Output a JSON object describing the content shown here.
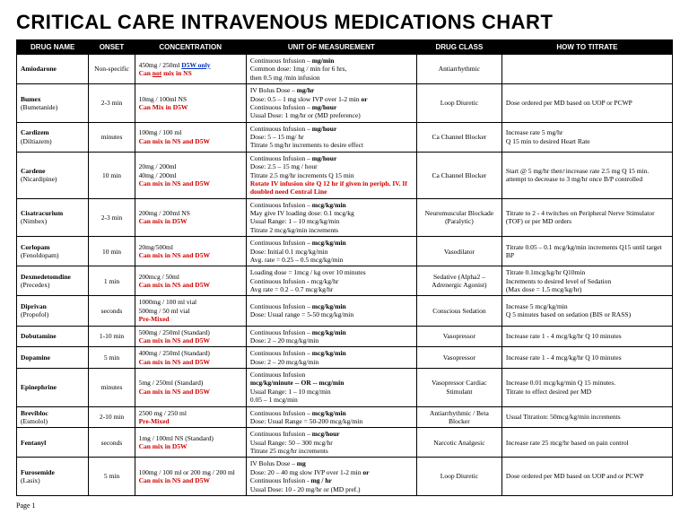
{
  "title": "CRITICAL CARE INTRAVENOUS MEDICATIONS CHART",
  "footer": "Page 1",
  "headers": {
    "name": "DRUG  NAME",
    "onset": "ONSET",
    "conc": "CONCENTRATION",
    "unit": "UNIT OF MEASUREMENT",
    "class": "DRUG CLASS",
    "tit": "HOW   TO TITRATE"
  },
  "rows": [
    {
      "name_html": "<span class='b'>Amiodarone</span>",
      "onset": "Non-specific",
      "conc_html": "450mg / 250ml  <span class='blue b'>D5W only</span><br><span class='red b'>Can <span class='u'>not</span> mix in NS</span>",
      "unit_html": "Continuous Infusion   –   <span class='b'>mg/min</span><br>Common dose: 1mg / min for 6 hrs,<br>then 0.5 mg /min infusion",
      "class": "Antiarrhythmic",
      "tit_html": ""
    },
    {
      "name_html": "<span class='b'>Bumex</span><br><span class='sub'>(Bumetanide)</span>",
      "onset": "2-3 min",
      "conc_html": "10mg / 100ml NS<br><span class='red b'>Can Mix in D5W</span>",
      "unit_html": "IV Bolus Dose   –    <span class='b'>mg/hr</span><br>Dose:  0.5 – 1 mg slow IVP over 1-2 min  <span class='b'>or</span><br>Continuous Infusion  –    <span class='b'>mg/hour</span><br>Usual Dose:  1 mg/hr  or (MD preference)",
      "class": "Loop Diuretic",
      "tit_html": "Dose ordered per MD based on UOP or PCWP"
    },
    {
      "name_html": "<span class='b'>Cardizem</span><br><span class='sub'>(Diltiazem)</span>",
      "onset": "minutes",
      "conc_html": "100mg / 100 ml<br><span class='red b'>Can mix in NS and D5W</span>",
      "unit_html": "Continuous Infusion   –    <span class='b'>mg/hour</span><br>Dose:  5 – 15 mg/ hr<br>Titrate 5 mg/hr increments to desire effect",
      "class": "Ca Channel Blocker",
      "tit_html": "Increase rate 5 mg/hr<br>Q 15 min to desired Heart Rate"
    },
    {
      "name_html": "<span class='b'>Cardene</span><br><span class='sub'>(Nicardipine)</span>",
      "onset": "10 min",
      "conc_html": "20mg / 200ml<br>40mg / 200ml<br><span class='red b'>Can mix in NS and D5W</span>",
      "unit_html": "Continuous Infusion   –    <span class='b'>mg/hour</span><br>Dose:  2.5 – 15 mg / hour<br>Titrate 2.5 mg/hr increments Q 15 min<br><span class='red b'>Rotate IV infusion site Q 12 hr if given in periph. IV.   If doubled need Central Line</span>",
      "class": "Ca Channel Blocker",
      "tit_html": "Start @ 5 mg/hr then↑increase  rate 2.5 mg Q 15 min. attempt to decrease to 3 mg/hr once B/P controlled"
    },
    {
      "name_html": "<span class='b'>Cisatracurium</span><br><span class='sub'>(Nimbex)</span>",
      "onset": "2-3 min",
      "conc_html": "200mg / 200ml NS<br><span class='red b'>Can mix in D5W</span>",
      "unit_html": "Continuous Infusion   –    <span class='b'>mcg/kg/min</span><br>May give IV loading dose: 0.1 mcg/kg<br>Usual Range:  1 – 10 mcg/kg/min<br>Titrate 2 mcg/kg/min increments",
      "class": "Neuromuscular Blockade (Paralytic)",
      "tit_html": "Titrate to 2  -  4  twitches on Peripheral  Nerve Stimulator (TOF) or per MD  orders"
    },
    {
      "name_html": "<span class='b'>Corlopam</span><br><span class='sub'>(Fenoldopam)</span>",
      "onset": "10 min",
      "conc_html": "20mg/500ml<br><span class='red b'>Can mix in NS and D5W</span>",
      "unit_html": "Continuous Infusion   –    <span class='b'>mcg/kg/min</span><br>Dose:  Initial 0.1 mcg/kg/min<br>Avg. rate = 0.25 – 0.5 mcg/kg/min",
      "class": "Vasodilator",
      "tit_html": "Titrate 0.05 – 0.1 mcg/kg/min increments Q15 until target BP"
    },
    {
      "name_html": "<span class='b'>Dexmedetomdine</span><br><span class='sub'>(Precedex)</span>",
      "onset": "1 min",
      "conc_html": "200mcg / 50ml<br><span class='red b'>Can mix in NS and D5W</span>",
      "unit_html": "Loading dose =  1mcg / kg over 10 minutes<br>Continuous Infusion   -    mcg/kg/hr<br>Avg rate = 0.2 – 0.7 mcg/kg/hr",
      "class": "Sedative (Alpha2 – Adrenergic Agonist)",
      "tit_html": "Titrate 0.1mcg/kg/hr Q10min<br>Increments to desired level of Sedation<br>(Max dose = 1.5 mcg/kg/hr)"
    },
    {
      "name_html": "<span class='b'>Diprivan</span><br><span class='sub'>(Propofol)</span>",
      "onset": "seconds",
      "conc_html": "1000mg / 100 ml vial<br>500mg / 50 ml vial<br><span class='red b'>Pre-Mixed</span>",
      "unit_html": "Continuous Infusion – <span class='b'>mcg/kg/min</span><br>Dose:  Usual range = 5-50 mcg/kg/min",
      "class": "Conscious Sedation",
      "tit_html": "Increase  5  mcg/kg/min<br>Q 5 minutes based on sedation  (BIS or RASS)"
    },
    {
      "name_html": "<span class='b'>Dobutamine</span>",
      "onset": "1-10 min",
      "conc_html": "500mg / 250ml (Standard)<br><span class='red b'>Can mix in NS and D5W</span>",
      "unit_html": "Continuous Infusion   –    <span class='b'>mcg/kg/min</span><br>Dose:  2 – 20 mcg/kg/min",
      "class": "Vasopressor",
      "tit_html": "Increase rate 1 -  4 mcg/kg/hr Q 10 minutes"
    },
    {
      "name_html": "<span class='b'>Dopamine</span>",
      "onset": "5 min",
      "conc_html": "400mg / 250ml (Standard)<br><span class='red b'>Can mix in NS and D5W</span>",
      "unit_html": "Continuous Infusion   –    <span class='b'>mcg/kg/min</span><br>Dose:  2 – 20 mcg/kg/min",
      "class": "Vasopressor",
      "tit_html": "Increase rate 1 -  4 mcg/kg/hr Q 10 minutes"
    },
    {
      "name_html": "<span class='b'>Epinephrine</span>",
      "onset": "minutes",
      "conc_html": "5mg / 250ml (Standard)<br><span class='red b'>Can mix in NS and D5W</span>",
      "unit_html": "Continuous Infusion<br><span class='b'>mcg/kg/minute --   OR  -- mcg/min</span><br>Usual Range: 1 – 10 mcg/min<br>                       0.05 – 1 mcg/min",
      "class": "Vasopressor Cardiac Stimulant",
      "tit_html": "Increase 0.01 mcg/kg/min Q 15 minutes.<br>Titrate to effect desired per MD"
    },
    {
      "name_html": "<span class='b'>Brevibloc</span><br><span class='sub'>(Esmolol)</span>",
      "onset": "2-10 min",
      "conc_html": "2500 mg / 250 ml<br><span class='red b'>Pre-Mixed</span>",
      "unit_html": "Continuous Infusion – <span class='b'>mcg/kg/min</span><br>Dose:  Usual Range = 50-200 mcg/kg/min",
      "class": "Antiarrhythmic / Beta Blocker",
      "tit_html": "Usual Titration: 50mcg/kg/min increments"
    },
    {
      "name_html": "<span class='b'>Fentanyl</span>",
      "onset": "seconds",
      "conc_html": "1mg / 100ml NS (Standard)<br><span class='red b'>Can mix in D5W</span>",
      "unit_html": "Continuous Infusion   –    <span class='b'>mcg/hour</span><br>Usual Range:  50 – 300 mcg/hr<br>Titrate 25 mcg/hr increments",
      "class": "Narcotic Analgesic",
      "tit_html": "Increase rate 25 mcg/hr based on pain control"
    },
    {
      "name_html": "<span class='b'>Furosemide</span><br><span class='sub'>(Lasix)</span>",
      "onset": "5 min",
      "conc_html": "100mg / 100 ml  or 200 mg / 200 ml<br><span class='red b'>Can mix in NS and D5W</span>",
      "unit_html": "IV Bolus Dose   –    <span class='b'>mg</span><br>Dose:  20 – 40 mg slow IVP over 1-2 min <span class='b'>or</span><br>Continuous Infusion -  <span class='b'>mg / hr</span><br>Usual Dose: 10 - 20 mg/hr or (MD pref.)",
      "class": "Loop Diuretic",
      "tit_html": "Dose ordered per MD based on UOP and or PCWP"
    }
  ]
}
